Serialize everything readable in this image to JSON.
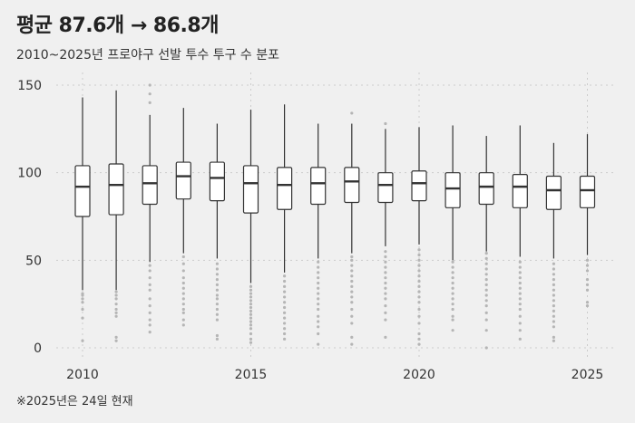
{
  "title": "평균 87.6개 → 86.8개",
  "subtitle": "2010~2025년 프로야구 선발 투수 투구 수 분포",
  "footnote": "※2025년은 24일 현재",
  "chart_data": {
    "type": "box",
    "title": "평균 87.6개 → 86.8개",
    "subtitle": "2010~2025년 프로야구 선발 투수 투구 수 분포",
    "xlabel": "",
    "ylabel": "",
    "ylim": [
      0,
      150
    ],
    "yticks": [
      0,
      50,
      100,
      150
    ],
    "xticks": [
      2010,
      2015,
      2020,
      2025
    ],
    "grid": "dotted",
    "colors": {
      "box_fill": "#ffffff",
      "box_stroke": "#333333",
      "outlier": "#b5b5b5",
      "grid": "#cccccc"
    },
    "boxes": [
      {
        "x": 2010,
        "whisker_low": 33,
        "q1": 75,
        "median": 92,
        "q3": 104,
        "whisker_high": 143,
        "outliers": [
          4,
          17,
          22,
          26,
          28,
          30,
          31
        ]
      },
      {
        "x": 2011,
        "whisker_low": 33,
        "q1": 76,
        "median": 93,
        "q3": 105,
        "whisker_high": 147,
        "outliers": [
          4,
          6,
          18,
          20,
          22,
          25,
          28,
          30,
          32
        ]
      },
      {
        "x": 2012,
        "whisker_low": 49,
        "q1": 82,
        "median": 94,
        "q3": 104,
        "whisker_high": 133,
        "outliers": [
          9,
          13,
          16,
          20,
          24,
          28,
          33,
          36,
          40,
          44,
          47,
          140,
          145,
          150
        ]
      },
      {
        "x": 2013,
        "whisker_low": 54,
        "q1": 85,
        "median": 98,
        "q3": 106,
        "whisker_high": 137,
        "outliers": [
          13,
          16,
          20,
          22,
          25,
          28,
          31,
          34,
          37,
          40,
          44,
          48,
          52
        ]
      },
      {
        "x": 2014,
        "whisker_low": 51,
        "q1": 84,
        "median": 97,
        "q3": 106,
        "whisker_high": 128,
        "outliers": [
          5,
          7,
          16,
          19,
          22,
          25,
          28,
          30,
          33,
          36,
          39,
          42,
          45,
          48
        ]
      },
      {
        "x": 2015,
        "whisker_low": 37,
        "q1": 77,
        "median": 94,
        "q3": 104,
        "whisker_high": 136,
        "outliers": [
          3,
          5,
          8,
          11,
          13,
          15,
          17,
          19,
          21,
          23,
          25,
          27,
          29,
          31,
          33,
          35
        ]
      },
      {
        "x": 2016,
        "whisker_low": 43,
        "q1": 79,
        "median": 93,
        "q3": 103,
        "whisker_high": 139,
        "outliers": [
          5,
          8,
          11,
          14,
          17,
          20,
          23,
          26,
          29,
          32,
          35,
          38,
          41
        ]
      },
      {
        "x": 2017,
        "whisker_low": 51,
        "q1": 82,
        "median": 94,
        "q3": 103,
        "whisker_high": 128,
        "outliers": [
          2,
          8,
          12,
          15,
          18,
          22,
          25,
          28,
          31,
          34,
          37,
          40,
          43,
          46,
          49
        ]
      },
      {
        "x": 2018,
        "whisker_low": 54,
        "q1": 83,
        "median": 95,
        "q3": 103,
        "whisker_high": 128,
        "outliers": [
          2,
          6,
          14,
          18,
          22,
          26,
          29,
          32,
          35,
          38,
          41,
          44,
          47,
          50,
          52,
          134
        ]
      },
      {
        "x": 2019,
        "whisker_low": 58,
        "q1": 83,
        "median": 93,
        "q3": 100,
        "whisker_high": 125,
        "outliers": [
          6,
          16,
          20,
          24,
          28,
          31,
          34,
          37,
          40,
          43,
          46,
          49,
          52,
          55,
          128
        ]
      },
      {
        "x": 2020,
        "whisker_low": 59,
        "q1": 84,
        "median": 94,
        "q3": 101,
        "whisker_high": 126,
        "outliers": [
          2,
          5,
          8,
          14,
          18,
          22,
          26,
          29,
          32,
          35,
          38,
          41,
          44,
          47,
          50,
          53,
          56
        ]
      },
      {
        "x": 2021,
        "whisker_low": 50,
        "q1": 80,
        "median": 91,
        "q3": 100,
        "whisker_high": 127,
        "outliers": [
          10,
          16,
          18,
          22,
          25,
          28,
          31,
          34,
          37,
          40,
          43,
          46,
          49
        ]
      },
      {
        "x": 2022,
        "whisker_low": 55,
        "q1": 82,
        "median": 92,
        "q3": 100,
        "whisker_high": 121,
        "outliers": [
          0,
          10,
          16,
          20,
          24,
          27,
          30,
          33,
          36,
          39,
          42,
          45,
          48,
          51,
          54
        ]
      },
      {
        "x": 2023,
        "whisker_low": 52,
        "q1": 80,
        "median": 92,
        "q3": 99,
        "whisker_high": 127,
        "outliers": [
          5,
          10,
          14,
          18,
          22,
          25,
          28,
          31,
          34,
          37,
          40,
          43,
          46,
          49
        ]
      },
      {
        "x": 2024,
        "whisker_low": 51,
        "q1": 79,
        "median": 90,
        "q3": 98,
        "whisker_high": 117,
        "outliers": [
          4,
          6,
          12,
          15,
          18,
          21,
          24,
          27,
          30,
          33,
          36,
          39,
          42,
          45,
          48
        ]
      },
      {
        "x": 2025,
        "whisker_low": 53,
        "q1": 80,
        "median": 90,
        "q3": 98,
        "whisker_high": 122,
        "outliers": [
          24,
          26,
          33,
          36,
          39,
          44,
          47,
          50
        ]
      }
    ]
  }
}
